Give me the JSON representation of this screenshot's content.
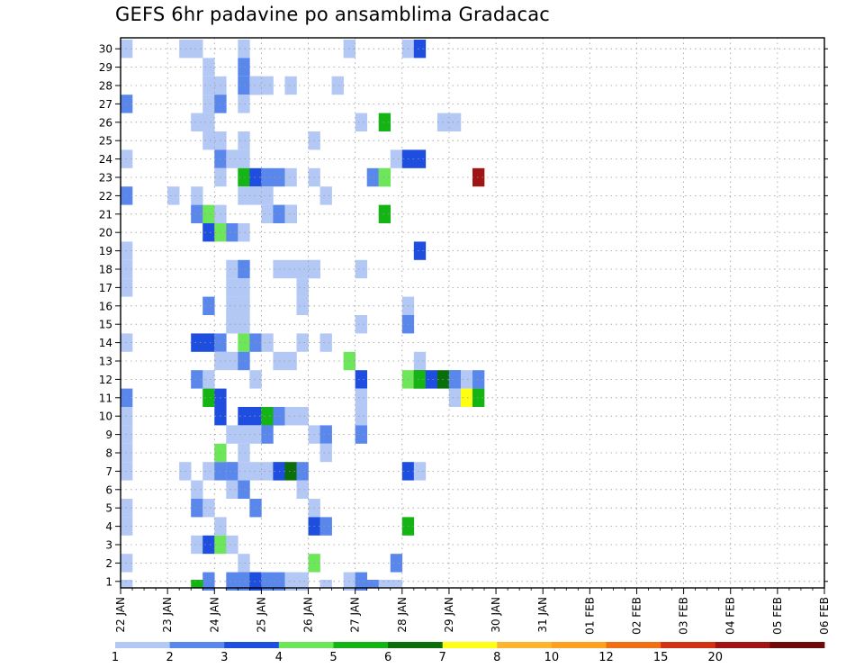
{
  "chart_data": {
    "type": "heatmap",
    "title": "GEFS 6hr padavine po ansamblima Gradacac",
    "y_ticks": [
      "1",
      "2",
      "3",
      "4",
      "5",
      "6",
      "7",
      "8",
      "9",
      "10",
      "11",
      "12",
      "13",
      "14",
      "15",
      "16",
      "17",
      "18",
      "19",
      "20",
      "21",
      "22",
      "23",
      "24",
      "25",
      "26",
      "27",
      "28",
      "29",
      "30"
    ],
    "x_ticks": [
      "22 JAN",
      "23 JAN",
      "24 JAN",
      "25 JAN",
      "26 JAN",
      "27 JAN",
      "28 JAN",
      "29 JAN",
      "30 JAN",
      "31 JAN",
      "01 FEB",
      "02 FEB",
      "03 FEB",
      "04 FEB",
      "05 FEB",
      "06 FEB"
    ],
    "x_unit": "6-hour step from 22 JAN 00Z",
    "y_unit": "ensemble member",
    "grid": true,
    "legend_position": "bottom",
    "color_scale": {
      "breaks": [
        "1",
        "2",
        "3",
        "4",
        "5",
        "6",
        "7",
        "8",
        "10",
        "12",
        "15",
        "20"
      ],
      "colors": [
        "#b4c8f5",
        "#5a87eb",
        "#1e4ee0",
        "#6ee65a",
        "#14b414",
        "#0a6e0a",
        "#ffff14",
        "#ffb42d",
        "#ffa01e",
        "#f06e14",
        "#d23214",
        "#a01414",
        "#6e0a0a"
      ]
    },
    "cells": [
      [
        0,
        30,
        0
      ],
      [
        5,
        30,
        0
      ],
      [
        6,
        30,
        0
      ],
      [
        10,
        30,
        0
      ],
      [
        19,
        30,
        0
      ],
      [
        24,
        30,
        0
      ],
      [
        25,
        30,
        2
      ],
      [
        7,
        29,
        0
      ],
      [
        10,
        29,
        1
      ],
      [
        7,
        28,
        0
      ],
      [
        8,
        28,
        0
      ],
      [
        11,
        28,
        1
      ],
      [
        10,
        28,
        1
      ],
      [
        11,
        28,
        0
      ],
      [
        12,
        28,
        0
      ],
      [
        12,
        28,
        0
      ],
      [
        14,
        28,
        0
      ],
      [
        18,
        28,
        0
      ],
      [
        0,
        27,
        1
      ],
      [
        7,
        27,
        0
      ],
      [
        8,
        27,
        0
      ],
      [
        8,
        27,
        1
      ],
      [
        10,
        27,
        0
      ],
      [
        6,
        26,
        0
      ],
      [
        7,
        26,
        0
      ],
      [
        20,
        26,
        0
      ],
      [
        22,
        26,
        4
      ],
      [
        27,
        26,
        0
      ],
      [
        28,
        26,
        0
      ],
      [
        7,
        25,
        0
      ],
      [
        8,
        25,
        0
      ],
      [
        10,
        25,
        0
      ],
      [
        16,
        25,
        0
      ],
      [
        0,
        24,
        0
      ],
      [
        8,
        24,
        1
      ],
      [
        9,
        24,
        0
      ],
      [
        10,
        24,
        0
      ],
      [
        23,
        24,
        0
      ],
      [
        24,
        24,
        2
      ],
      [
        25,
        24,
        2
      ],
      [
        8,
        23,
        0
      ],
      [
        10,
        23,
        4
      ],
      [
        11,
        23,
        2
      ],
      [
        12,
        23,
        1
      ],
      [
        13,
        23,
        1
      ],
      [
        14,
        23,
        0
      ],
      [
        16,
        23,
        0
      ],
      [
        21,
        23,
        1
      ],
      [
        22,
        23,
        0
      ],
      [
        22,
        23,
        3
      ],
      [
        30,
        23,
        11
      ],
      [
        0,
        22,
        1
      ],
      [
        4,
        22,
        0
      ],
      [
        6,
        22,
        0
      ],
      [
        10,
        22,
        0
      ],
      [
        11,
        22,
        0
      ],
      [
        12,
        22,
        0
      ],
      [
        17,
        22,
        0
      ],
      [
        6,
        21,
        1
      ],
      [
        7,
        21,
        3
      ],
      [
        8,
        21,
        0
      ],
      [
        12,
        21,
        0
      ],
      [
        13,
        21,
        0
      ],
      [
        13,
        21,
        1
      ],
      [
        14,
        21,
        1
      ],
      [
        14,
        21,
        0
      ],
      [
        22,
        21,
        4
      ],
      [
        7,
        20,
        2
      ],
      [
        8,
        20,
        3
      ],
      [
        9,
        20,
        1
      ],
      [
        10,
        20,
        0
      ],
      [
        0,
        19,
        0
      ],
      [
        25,
        19,
        2
      ],
      [
        0,
        18,
        0
      ],
      [
        9,
        18,
        0
      ],
      [
        10,
        18,
        1
      ],
      [
        13,
        18,
        0
      ],
      [
        14,
        18,
        0
      ],
      [
        15,
        18,
        0
      ],
      [
        16,
        18,
        0
      ],
      [
        16,
        18,
        0
      ],
      [
        20,
        18,
        0
      ],
      [
        0,
        17,
        0
      ],
      [
        9,
        17,
        0
      ],
      [
        10,
        17,
        0
      ],
      [
        15,
        17,
        0
      ],
      [
        7,
        16,
        1
      ],
      [
        9,
        16,
        0
      ],
      [
        10,
        16,
        0
      ],
      [
        15,
        16,
        0
      ],
      [
        24,
        16,
        0
      ],
      [
        9,
        15,
        0
      ],
      [
        9,
        15,
        0
      ],
      [
        10,
        15,
        0
      ],
      [
        20,
        15,
        0
      ],
      [
        24,
        15,
        1
      ],
      [
        0,
        14,
        0
      ],
      [
        6,
        14,
        2
      ],
      [
        7,
        14,
        2
      ],
      [
        8,
        14,
        1
      ],
      [
        10,
        14,
        3
      ],
      [
        11,
        14,
        1
      ],
      [
        12,
        14,
        0
      ],
      [
        15,
        14,
        0
      ],
      [
        17,
        14,
        0
      ],
      [
        8,
        13,
        0
      ],
      [
        9,
        13,
        0
      ],
      [
        10,
        13,
        1
      ],
      [
        13,
        13,
        0
      ],
      [
        14,
        13,
        0
      ],
      [
        19,
        13,
        3
      ],
      [
        25,
        13,
        0
      ],
      [
        6,
        12,
        1
      ],
      [
        7,
        12,
        0
      ],
      [
        11,
        12,
        0
      ],
      [
        20,
        12,
        2
      ],
      [
        24,
        12,
        3
      ],
      [
        25,
        12,
        11
      ],
      [
        25,
        12,
        4
      ],
      [
        26,
        12,
        2
      ],
      [
        27,
        12,
        5
      ],
      [
        28,
        12,
        4
      ],
      [
        28,
        12,
        1
      ],
      [
        29,
        12,
        0
      ],
      [
        30,
        12,
        1
      ],
      [
        0,
        11,
        1
      ],
      [
        7,
        11,
        4
      ],
      [
        8,
        11,
        2
      ],
      [
        20,
        11,
        0
      ],
      [
        28,
        11,
        0
      ],
      [
        29,
        11,
        6
      ],
      [
        30,
        11,
        4
      ],
      [
        0,
        10,
        0
      ],
      [
        8,
        10,
        2
      ],
      [
        10,
        10,
        2
      ],
      [
        11,
        10,
        2
      ],
      [
        12,
        10,
        1
      ],
      [
        12,
        10,
        4
      ],
      [
        13,
        10,
        2
      ],
      [
        13,
        10,
        1
      ],
      [
        14,
        10,
        0
      ],
      [
        15,
        10,
        0
      ],
      [
        20,
        10,
        0
      ],
      [
        0,
        9,
        0
      ],
      [
        9,
        9,
        0
      ],
      [
        10,
        9,
        0
      ],
      [
        11,
        9,
        0
      ],
      [
        12,
        9,
        1
      ],
      [
        16,
        9,
        0
      ],
      [
        17,
        9,
        1
      ],
      [
        20,
        9,
        1
      ],
      [
        0,
        8,
        0
      ],
      [
        8,
        8,
        3
      ],
      [
        10,
        8,
        0
      ],
      [
        17,
        8,
        0
      ],
      [
        0,
        7,
        0
      ],
      [
        5,
        7,
        0
      ],
      [
        7,
        7,
        0
      ],
      [
        8,
        7,
        1
      ],
      [
        9,
        7,
        0
      ],
      [
        9,
        7,
        1
      ],
      [
        10,
        7,
        0
      ],
      [
        11,
        7,
        0
      ],
      [
        12,
        7,
        0
      ],
      [
        13,
        7,
        3
      ],
      [
        13,
        7,
        2
      ],
      [
        14,
        7,
        5
      ],
      [
        15,
        7,
        1
      ],
      [
        24,
        7,
        2
      ],
      [
        25,
        7,
        0
      ],
      [
        6,
        6,
        0
      ],
      [
        9,
        6,
        0
      ],
      [
        10,
        6,
        0
      ],
      [
        10,
        6,
        1
      ],
      [
        15,
        6,
        0
      ],
      [
        15,
        6,
        0
      ],
      [
        0,
        5,
        0
      ],
      [
        6,
        5,
        1
      ],
      [
        7,
        5,
        0
      ],
      [
        11,
        5,
        1
      ],
      [
        16,
        5,
        0
      ],
      [
        0,
        4,
        0
      ],
      [
        8,
        4,
        0
      ],
      [
        16,
        4,
        2
      ],
      [
        17,
        4,
        1
      ],
      [
        24,
        4,
        4
      ],
      [
        6,
        3,
        0
      ],
      [
        7,
        3,
        2
      ],
      [
        8,
        3,
        3
      ],
      [
        9,
        3,
        0
      ],
      [
        0,
        2,
        0
      ],
      [
        10,
        2,
        0
      ],
      [
        16,
        2,
        3
      ],
      [
        23,
        2,
        1
      ],
      [
        7,
        1,
        1
      ],
      [
        9,
        1,
        1
      ],
      [
        10,
        1,
        1
      ],
      [
        10,
        1,
        1
      ],
      [
        11,
        1,
        4
      ],
      [
        11,
        1,
        2
      ],
      [
        12,
        1,
        1
      ],
      [
        13,
        1,
        1
      ],
      [
        14,
        1,
        0
      ],
      [
        15,
        1,
        0
      ],
      [
        19,
        1,
        0
      ],
      [
        20,
        1,
        1
      ],
      [
        0,
        0,
        0
      ],
      [
        6,
        0,
        4
      ],
      [
        15,
        0,
        0
      ],
      [
        17,
        0,
        0
      ],
      [
        21,
        0,
        1
      ],
      [
        22,
        0,
        0
      ],
      [
        23,
        0,
        0
      ]
    ]
  }
}
